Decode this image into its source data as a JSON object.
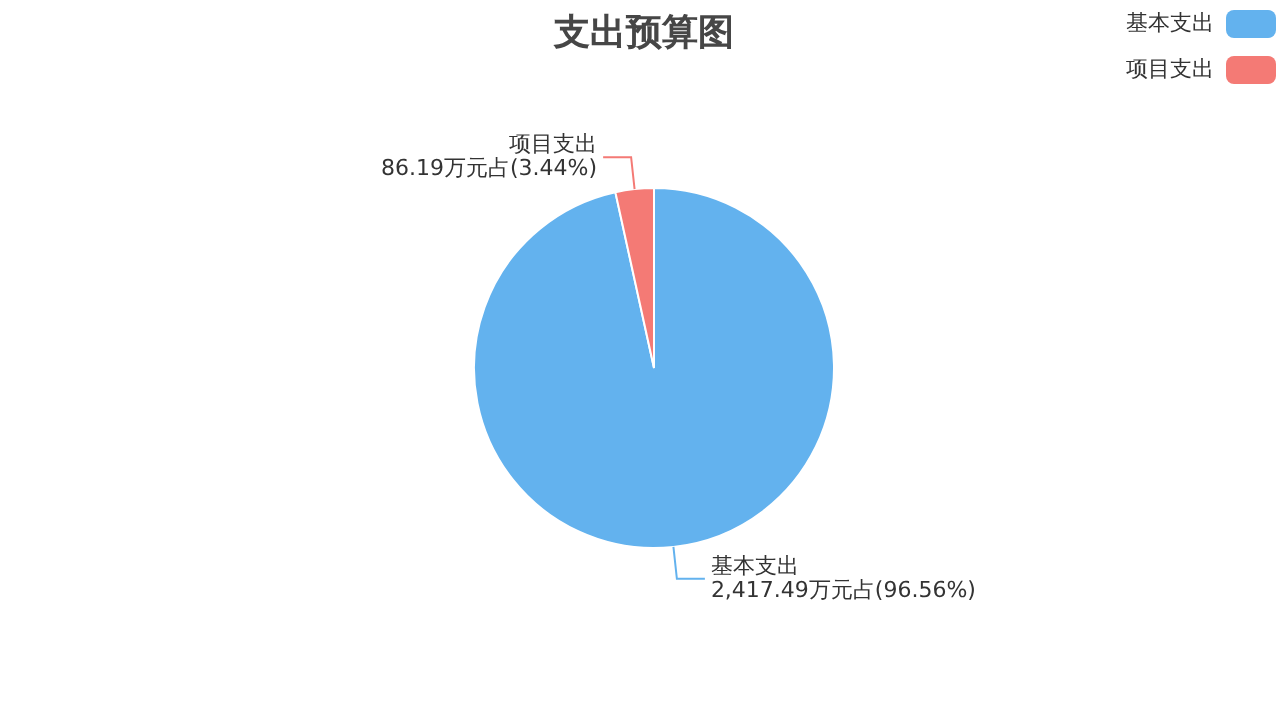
{
  "chart_data": {
    "type": "pie",
    "title": "支出预算图",
    "categories": [
      "基本支出",
      "项目支出"
    ],
    "values": [
      2417.49,
      86.19
    ],
    "colors": [
      "#63b2ee",
      "#f47a75"
    ],
    "value_labels": [
      "2,417.49万元占(96.56%)",
      "86.19万元占(3.44%)"
    ],
    "legend": "top right"
  }
}
